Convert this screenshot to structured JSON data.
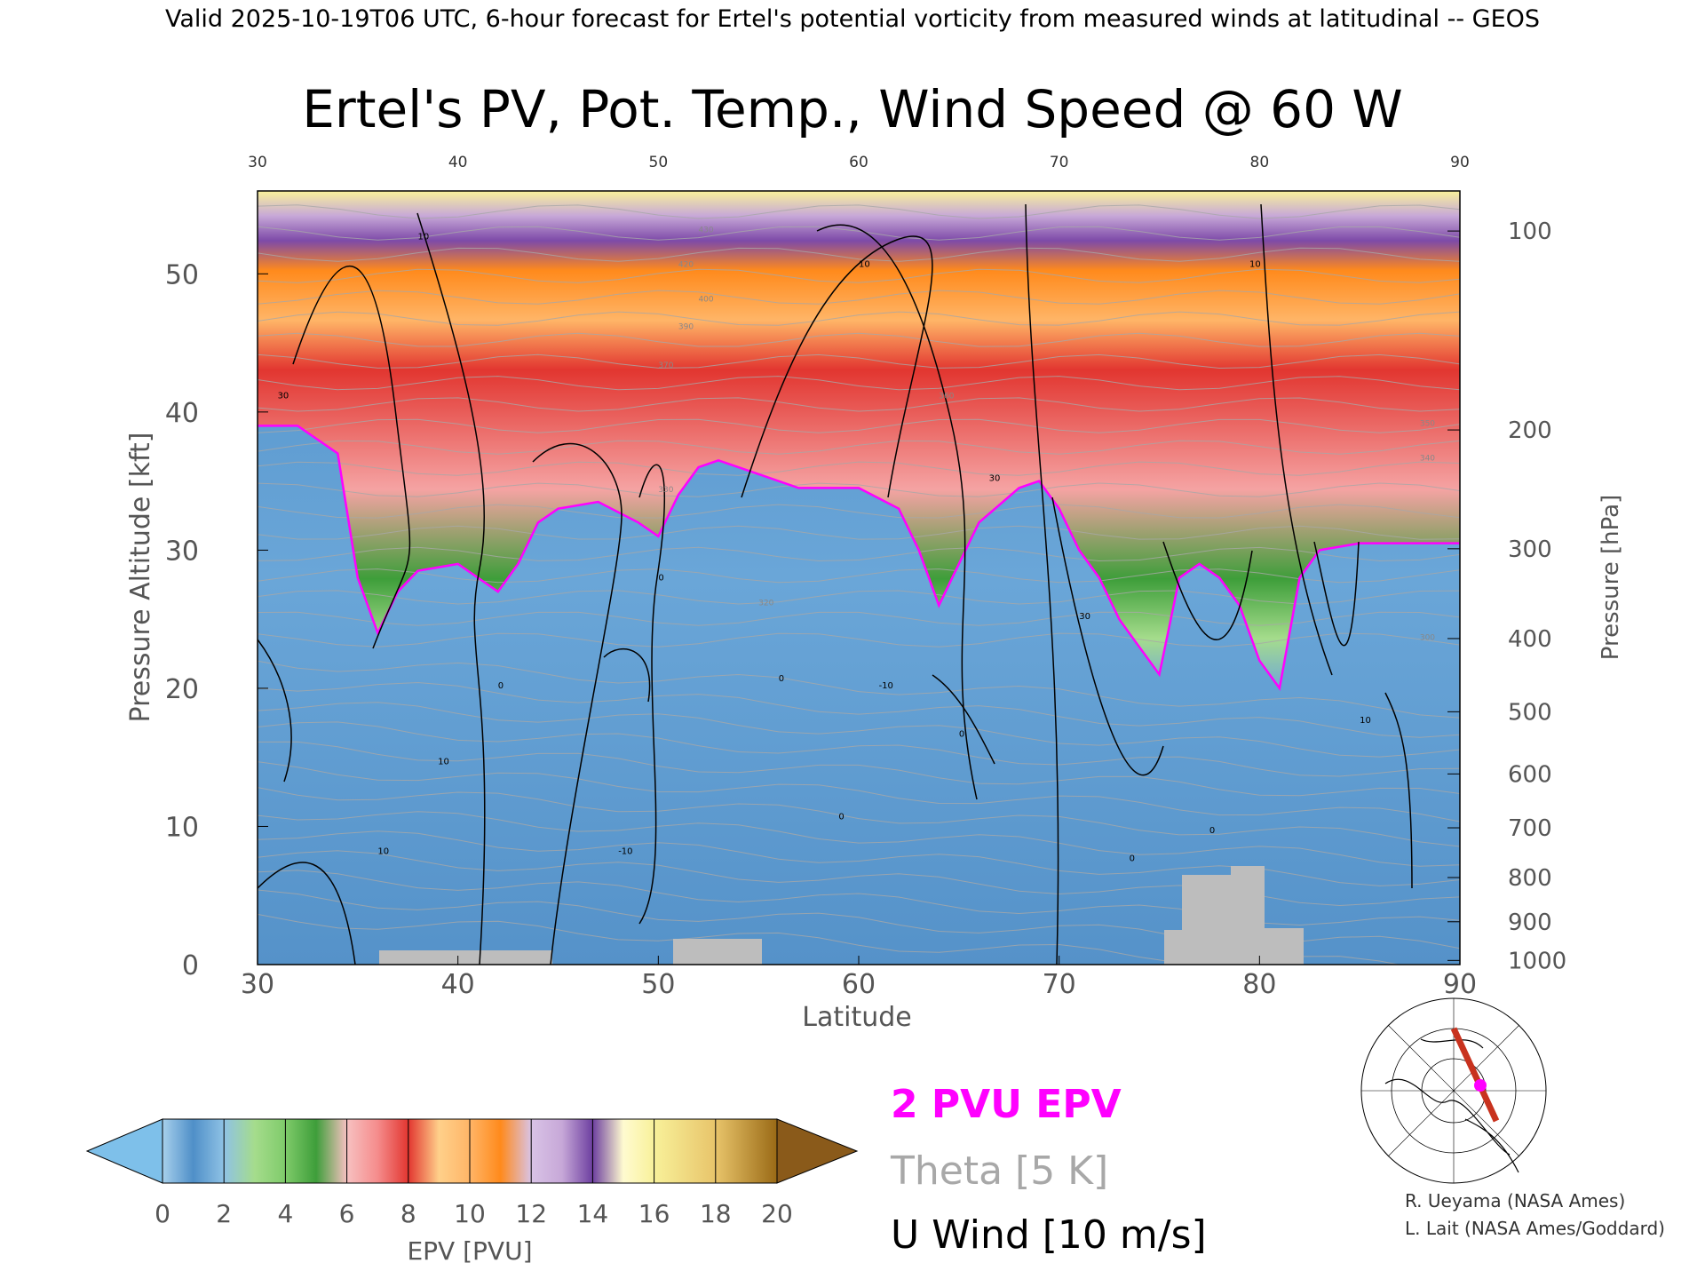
{
  "header": {
    "valid_line": "Valid 2025-10-19T06 UTC, 6-hour forecast for Ertel's potential vorticity from measured winds at latitudinal -- GEOS"
  },
  "chart_data": {
    "type": "heatmap",
    "title": "Ertel's PV, Pot. Temp., Wind Speed @ 60 W",
    "xlabel": "Latitude",
    "ylabel_left": "Pressure Altitude [kft]",
    "ylabel_right": "Pressure [hPa]",
    "xlim": [
      30,
      90
    ],
    "ylim": [
      0,
      56
    ],
    "x_ticks": [
      "30",
      "40",
      "50",
      "60",
      "70",
      "80",
      "90"
    ],
    "x_top_ticks": [
      "30",
      "40",
      "50",
      "60",
      "70",
      "80",
      "90"
    ],
    "y_left_ticks": [
      "0",
      "10",
      "20",
      "30",
      "40",
      "50"
    ],
    "y_right_ticks": [
      {
        "label": "100",
        "kft": 53.1
      },
      {
        "label": "200",
        "kft": 38.7
      },
      {
        "label": "300",
        "kft": 30.1
      },
      {
        "label": "400",
        "kft": 23.6
      },
      {
        "label": "500",
        "kft": 18.3
      },
      {
        "label": "600",
        "kft": 13.8
      },
      {
        "label": "700",
        "kft": 9.9
      },
      {
        "label": "800",
        "kft": 6.3
      },
      {
        "label": "900",
        "kft": 3.1
      },
      {
        "label": "1000",
        "kft": 0.3
      }
    ],
    "tropopause_2pvu_kft": {
      "lat": [
        30,
        32,
        34,
        35,
        36,
        37,
        38,
        40,
        41,
        42,
        43,
        44,
        45,
        47,
        49,
        50,
        51,
        52,
        53,
        55,
        57,
        60,
        62,
        63,
        64,
        65,
        66,
        68,
        69,
        70,
        71,
        72,
        73,
        74,
        75,
        76,
        77,
        78,
        79,
        80,
        81,
        82,
        83,
        85,
        87,
        90
      ],
      "kft": [
        39,
        39,
        37,
        28,
        24,
        27,
        28.5,
        29,
        28,
        27,
        29,
        32,
        33,
        33.5,
        32,
        31,
        34,
        36,
        36.5,
        35.5,
        34.5,
        34.5,
        33,
        30,
        26,
        29,
        32,
        34.5,
        35,
        33,
        30,
        28,
        25,
        23,
        21,
        28,
        29,
        28,
        26,
        22,
        20,
        28,
        30,
        30.5,
        30.5,
        30.5
      ]
    },
    "colorbar": {
      "label": "EPV [PVU]",
      "ticks": [
        "0",
        "2",
        "4",
        "6",
        "8",
        "10",
        "12",
        "14",
        "16",
        "18",
        "20"
      ],
      "colors": [
        "#8fc2e5",
        "#4f8fc8",
        "#a5dc8c",
        "#3e9e3a",
        "#f5a3a3",
        "#e23630",
        "#ffb567",
        "#ff8a1c",
        "#c7a8d8",
        "#6d3fa0",
        "#f8f19a",
        "#9a6a16"
      ],
      "under_color": "#7ec0ea",
      "over_color": "#8a5a1a"
    },
    "legend": [
      {
        "label": "2 PVU EPV",
        "color": "#ff00ff"
      },
      {
        "label": "Theta [5 K]",
        "color": "#a8a8a8"
      },
      {
        "label": "U Wind [10 m/s]",
        "color": "#000000"
      }
    ],
    "contour_labels": {
      "theta": [
        "430",
        "420",
        "400",
        "390",
        "370",
        "360",
        "350",
        "340",
        "330",
        "320",
        "300"
      ],
      "wind": [
        "10",
        "0",
        "30",
        "-10"
      ]
    }
  },
  "credits": [
    "R. Ueyama (NASA Ames)",
    "L. Lait (NASA Ames/Goddard)"
  ],
  "colors": {
    "pv_low": "#7eb3dc",
    "pv_troposphere": "#5f9fd3",
    "tropopause_contour": "#ff00ff",
    "terrain": "#bdbdbd"
  }
}
